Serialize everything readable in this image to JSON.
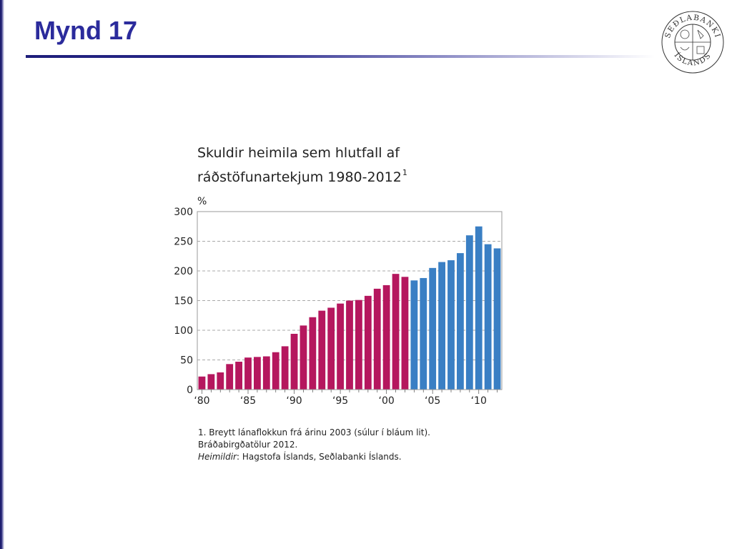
{
  "slide": {
    "title": "Mynd 17"
  },
  "logo": {
    "top_text": "SEÐLABANKI",
    "bottom_text": "ÍSLANDS"
  },
  "chart_data": {
    "type": "bar",
    "title": "Skuldir heimila sem hlutfall af ráðstöfunartekjum 1980-2012",
    "title_line1": "Skuldir heimila sem hlutfall af",
    "title_line2": "ráðstöfunartekjum 1980-2012",
    "title_footnote": "1",
    "ylabel": "%",
    "ylim": [
      0,
      300
    ],
    "y_ticks": [
      "0",
      "50",
      "100",
      "150",
      "200",
      "250",
      "300"
    ],
    "x_ticks": [
      {
        "year": 1980,
        "label": "‘80"
      },
      {
        "year": 1985,
        "label": "‘85"
      },
      {
        "year": 1990,
        "label": "‘90"
      },
      {
        "year": 1995,
        "label": "‘95"
      },
      {
        "year": 2000,
        "label": "‘00"
      },
      {
        "year": 2005,
        "label": "‘05"
      },
      {
        "year": 2010,
        "label": "‘10"
      }
    ],
    "grid": "horizontal dashed",
    "series": [
      {
        "color": "#b5175e",
        "x": [
          1980,
          1981,
          1982,
          1983,
          1984,
          1985,
          1986,
          1987,
          1988,
          1989,
          1990,
          1991,
          1992,
          1993,
          1994,
          1995,
          1996,
          1997,
          1998,
          1999,
          2000,
          2001,
          2002
        ],
        "values": [
          22,
          26,
          29,
          43,
          47,
          54,
          55,
          56,
          63,
          73,
          94,
          108,
          122,
          133,
          138,
          145,
          150,
          151,
          158,
          170,
          176,
          195,
          190
        ]
      },
      {
        "color": "#3a7fc4",
        "x": [
          2003,
          2004,
          2005,
          2006,
          2007,
          2008,
          2009,
          2010,
          2011,
          2012
        ],
        "values": [
          184,
          188,
          205,
          215,
          218,
          230,
          260,
          275,
          245,
          238
        ]
      }
    ],
    "notes": {
      "line1": "1. Breytt lánaflokkun frá árinu 2003 (súlur í bláum lit).",
      "line2": "Bráðabirgðatölur 2012.",
      "source_label": "Heimildir",
      "source_text": ": Hagstofa Íslands, Seðlabanki Íslands."
    }
  }
}
